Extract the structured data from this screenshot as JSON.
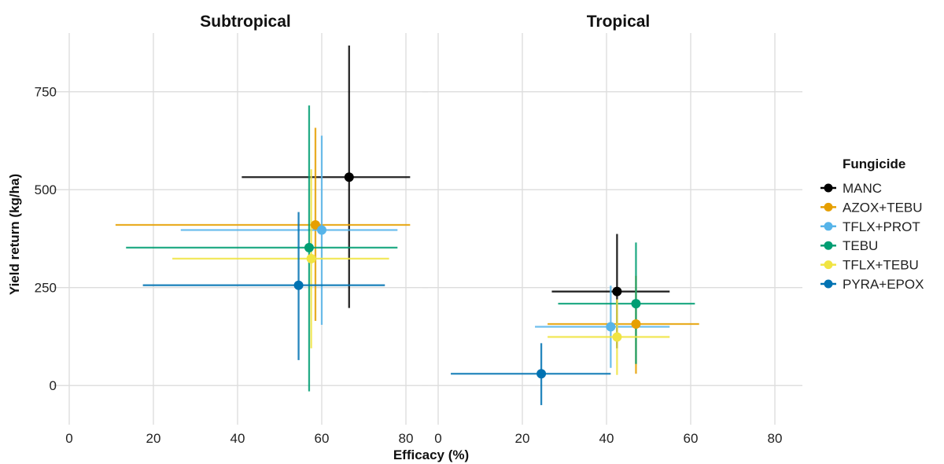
{
  "chart_data": {
    "type": "scatter",
    "xlabel": "Efficacy (%)",
    "ylabel": "Yield return (kg/ha)",
    "xlim": [
      -1,
      85
    ],
    "ylim": [
      -100,
      900
    ],
    "xticks": [
      0,
      20,
      40,
      60,
      80
    ],
    "yticks": [
      0,
      250,
      500,
      750
    ],
    "grid": true,
    "legend": {
      "title": "Fungicide",
      "position": "right"
    },
    "series": [
      {
        "name": "MANC",
        "color": "#000000"
      },
      {
        "name": "AZOX+TEBU",
        "color": "#E69F00"
      },
      {
        "name": "TFLX+PROT",
        "color": "#56B4E9"
      },
      {
        "name": "TEBU",
        "color": "#009E73"
      },
      {
        "name": "TFLX+TEBU",
        "color": "#F0E442"
      },
      {
        "name": "PYRA+EPOX",
        "color": "#0072B2"
      }
    ],
    "panels": [
      {
        "title": "Subtropical",
        "points": [
          {
            "series": "MANC",
            "x": 66.5,
            "y": 532,
            "xmin": 41,
            "xmax": 81,
            "ymin": 198,
            "ymax": 868
          },
          {
            "series": "AZOX+TEBU",
            "x": 58.5,
            "y": 410,
            "xmin": 11,
            "xmax": 81,
            "ymin": 165,
            "ymax": 658
          },
          {
            "series": "TFLX+PROT",
            "x": 60,
            "y": 397,
            "xmin": 26.5,
            "xmax": 78,
            "ymin": 155,
            "ymax": 638
          },
          {
            "series": "TEBU",
            "x": 57,
            "y": 352,
            "xmin": 13.5,
            "xmax": 78,
            "ymin": -15,
            "ymax": 715
          },
          {
            "series": "TFLX+TEBU",
            "x": 57.5,
            "y": 324,
            "xmin": 24.5,
            "xmax": 76,
            "ymin": 95,
            "ymax": 552
          },
          {
            "series": "PYRA+EPOX",
            "x": 54.5,
            "y": 256,
            "xmin": 17.5,
            "xmax": 75,
            "ymin": 65,
            "ymax": 443
          }
        ]
      },
      {
        "title": "Tropical",
        "points": [
          {
            "series": "MANC",
            "x": 42.5,
            "y": 240,
            "xmin": 27,
            "xmax": 55,
            "ymin": 95,
            "ymax": 387
          },
          {
            "series": "AZOX+TEBU",
            "x": 47,
            "y": 157,
            "xmin": 26,
            "xmax": 62,
            "ymin": 30,
            "ymax": 280
          },
          {
            "series": "TFLX+PROT",
            "x": 41,
            "y": 150,
            "xmin": 23,
            "xmax": 55,
            "ymin": 45,
            "ymax": 255
          },
          {
            "series": "TEBU",
            "x": 47,
            "y": 209,
            "xmin": 28.5,
            "xmax": 61,
            "ymin": 55,
            "ymax": 365
          },
          {
            "series": "TFLX+TEBU",
            "x": 42.5,
            "y": 124,
            "xmin": 26,
            "xmax": 55,
            "ymin": 27,
            "ymax": 220
          },
          {
            "series": "PYRA+EPOX",
            "x": 24.5,
            "y": 30,
            "xmin": 3,
            "xmax": 41,
            "ymin": -50,
            "ymax": 108
          }
        ]
      }
    ]
  }
}
